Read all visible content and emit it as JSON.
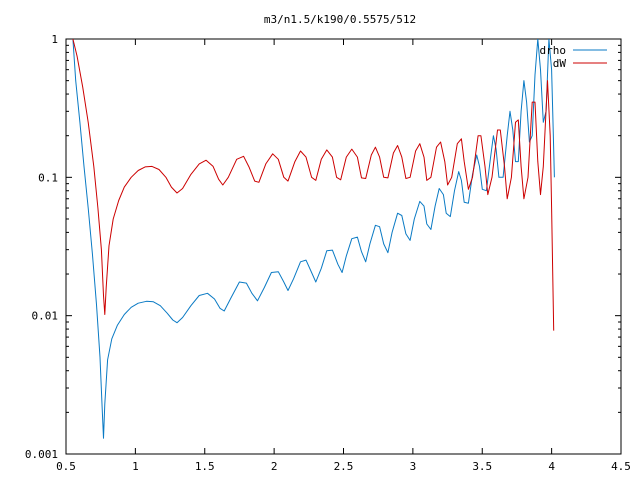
{
  "chart_data": {
    "type": "line",
    "title": "m3/n1.5/k190/0.5575/512",
    "xlabel": "",
    "ylabel": "",
    "xlim": [
      0.5,
      4.5
    ],
    "ylim": [
      0.001,
      1
    ],
    "yscale": "log",
    "grid": false,
    "legend_position": "top-right",
    "x_ticks": [
      0.5,
      1,
      1.5,
      2,
      2.5,
      3,
      3.5,
      4,
      4.5
    ],
    "x_tick_labels": [
      "0.5",
      "1",
      "1.5",
      "2",
      "2.5",
      "3",
      "3.5",
      "4",
      "4.5"
    ],
    "y_ticks": [
      0.001,
      0.01,
      0.1,
      1
    ],
    "y_tick_labels": [
      "0.001",
      "0.01",
      "0.1",
      "1"
    ],
    "series": [
      {
        "name": "drho",
        "color": "#0a7ac4",
        "points": [
          [
            0.55,
            1.0
          ],
          [
            0.57,
            0.5
          ],
          [
            0.6,
            0.25
          ],
          [
            0.63,
            0.12
          ],
          [
            0.66,
            0.06
          ],
          [
            0.69,
            0.028
          ],
          [
            0.72,
            0.012
          ],
          [
            0.745,
            0.005
          ],
          [
            0.76,
            0.0022
          ],
          [
            0.77,
            0.0013
          ],
          [
            0.78,
            0.0023
          ],
          [
            0.8,
            0.0048
          ],
          [
            0.83,
            0.0068
          ],
          [
            0.87,
            0.0085
          ],
          [
            0.92,
            0.0102
          ],
          [
            0.97,
            0.0115
          ],
          [
            1.02,
            0.0123
          ],
          [
            1.08,
            0.0127
          ],
          [
            1.13,
            0.0126
          ],
          [
            1.18,
            0.0118
          ],
          [
            1.23,
            0.0104
          ],
          [
            1.27,
            0.0093
          ],
          [
            1.3,
            0.0089
          ],
          [
            1.34,
            0.0097
          ],
          [
            1.4,
            0.0118
          ],
          [
            1.46,
            0.014
          ],
          [
            1.52,
            0.0145
          ],
          [
            1.57,
            0.0132
          ],
          [
            1.61,
            0.0113
          ],
          [
            1.64,
            0.0108
          ],
          [
            1.69,
            0.0135
          ],
          [
            1.75,
            0.0175
          ],
          [
            1.8,
            0.0172
          ],
          [
            1.84,
            0.0145
          ],
          [
            1.88,
            0.0128
          ],
          [
            1.93,
            0.016
          ],
          [
            1.98,
            0.0205
          ],
          [
            2.03,
            0.0208
          ],
          [
            2.07,
            0.0175
          ],
          [
            2.1,
            0.0152
          ],
          [
            2.14,
            0.0185
          ],
          [
            2.19,
            0.0245
          ],
          [
            2.23,
            0.0252
          ],
          [
            2.27,
            0.0205
          ],
          [
            2.3,
            0.0175
          ],
          [
            2.34,
            0.022
          ],
          [
            2.38,
            0.0295
          ],
          [
            2.42,
            0.0298
          ],
          [
            2.46,
            0.0235
          ],
          [
            2.49,
            0.0205
          ],
          [
            2.52,
            0.027
          ],
          [
            2.56,
            0.036
          ],
          [
            2.6,
            0.037
          ],
          [
            2.63,
            0.029
          ],
          [
            2.66,
            0.0245
          ],
          [
            2.69,
            0.033
          ],
          [
            2.73,
            0.045
          ],
          [
            2.76,
            0.044
          ],
          [
            2.79,
            0.033
          ],
          [
            2.82,
            0.0285
          ],
          [
            2.85,
            0.04
          ],
          [
            2.89,
            0.055
          ],
          [
            2.92,
            0.053
          ],
          [
            2.95,
            0.039
          ],
          [
            2.98,
            0.035
          ],
          [
            3.01,
            0.05
          ],
          [
            3.05,
            0.067
          ],
          [
            3.08,
            0.062
          ],
          [
            3.1,
            0.046
          ],
          [
            3.13,
            0.042
          ],
          [
            3.16,
            0.062
          ],
          [
            3.19,
            0.083
          ],
          [
            3.22,
            0.075
          ],
          [
            3.24,
            0.055
          ],
          [
            3.27,
            0.052
          ],
          [
            3.3,
            0.08
          ],
          [
            3.33,
            0.11
          ],
          [
            3.35,
            0.095
          ],
          [
            3.37,
            0.066
          ],
          [
            3.4,
            0.065
          ],
          [
            3.43,
            0.105
          ],
          [
            3.46,
            0.145
          ],
          [
            3.48,
            0.12
          ],
          [
            3.5,
            0.082
          ],
          [
            3.53,
            0.08
          ],
          [
            3.56,
            0.14
          ],
          [
            3.58,
            0.2
          ],
          [
            3.6,
            0.16
          ],
          [
            3.62,
            0.1
          ],
          [
            3.65,
            0.1
          ],
          [
            3.68,
            0.2
          ],
          [
            3.7,
            0.3
          ],
          [
            3.72,
            0.22
          ],
          [
            3.74,
            0.13
          ],
          [
            3.76,
            0.13
          ],
          [
            3.78,
            0.3
          ],
          [
            3.8,
            0.5
          ],
          [
            3.82,
            0.35
          ],
          [
            3.84,
            0.18
          ],
          [
            3.86,
            0.2
          ],
          [
            3.88,
            0.55
          ],
          [
            3.9,
            1.0
          ],
          [
            3.92,
            0.6
          ],
          [
            3.94,
            0.25
          ],
          [
            3.96,
            0.3
          ],
          [
            3.98,
            1.0
          ],
          [
            4.0,
            0.6
          ],
          [
            4.01,
            0.25
          ],
          [
            4.02,
            0.1
          ]
        ]
      },
      {
        "name": "dW",
        "color": "#cc0000",
        "points": [
          [
            0.55,
            1.0
          ],
          [
            0.58,
            0.75
          ],
          [
            0.62,
            0.45
          ],
          [
            0.66,
            0.25
          ],
          [
            0.7,
            0.12
          ],
          [
            0.73,
            0.06
          ],
          [
            0.755,
            0.03
          ],
          [
            0.77,
            0.014
          ],
          [
            0.78,
            0.0102
          ],
          [
            0.79,
            0.016
          ],
          [
            0.81,
            0.032
          ],
          [
            0.84,
            0.05
          ],
          [
            0.88,
            0.068
          ],
          [
            0.92,
            0.085
          ],
          [
            0.97,
            0.1
          ],
          [
            1.02,
            0.112
          ],
          [
            1.07,
            0.119
          ],
          [
            1.12,
            0.12
          ],
          [
            1.17,
            0.114
          ],
          [
            1.22,
            0.1
          ],
          [
            1.26,
            0.085
          ],
          [
            1.3,
            0.077
          ],
          [
            1.34,
            0.083
          ],
          [
            1.4,
            0.105
          ],
          [
            1.46,
            0.125
          ],
          [
            1.51,
            0.133
          ],
          [
            1.56,
            0.12
          ],
          [
            1.6,
            0.097
          ],
          [
            1.63,
            0.088
          ],
          [
            1.67,
            0.1
          ],
          [
            1.73,
            0.135
          ],
          [
            1.78,
            0.142
          ],
          [
            1.82,
            0.118
          ],
          [
            1.86,
            0.094
          ],
          [
            1.89,
            0.092
          ],
          [
            1.94,
            0.125
          ],
          [
            1.99,
            0.148
          ],
          [
            2.03,
            0.135
          ],
          [
            2.07,
            0.1
          ],
          [
            2.1,
            0.094
          ],
          [
            2.15,
            0.13
          ],
          [
            2.19,
            0.155
          ],
          [
            2.23,
            0.14
          ],
          [
            2.27,
            0.1
          ],
          [
            2.3,
            0.095
          ],
          [
            2.34,
            0.135
          ],
          [
            2.38,
            0.158
          ],
          [
            2.42,
            0.14
          ],
          [
            2.45,
            0.1
          ],
          [
            2.48,
            0.096
          ],
          [
            2.52,
            0.14
          ],
          [
            2.56,
            0.16
          ],
          [
            2.6,
            0.14
          ],
          [
            2.63,
            0.099
          ],
          [
            2.66,
            0.098
          ],
          [
            2.7,
            0.145
          ],
          [
            2.73,
            0.165
          ],
          [
            2.76,
            0.14
          ],
          [
            2.79,
            0.1
          ],
          [
            2.82,
            0.099
          ],
          [
            2.86,
            0.15
          ],
          [
            2.89,
            0.17
          ],
          [
            2.92,
            0.14
          ],
          [
            2.95,
            0.098
          ],
          [
            2.98,
            0.1
          ],
          [
            3.02,
            0.155
          ],
          [
            3.05,
            0.175
          ],
          [
            3.08,
            0.14
          ],
          [
            3.1,
            0.095
          ],
          [
            3.13,
            0.1
          ],
          [
            3.17,
            0.165
          ],
          [
            3.2,
            0.18
          ],
          [
            3.23,
            0.13
          ],
          [
            3.25,
            0.088
          ],
          [
            3.28,
            0.1
          ],
          [
            3.32,
            0.175
          ],
          [
            3.35,
            0.19
          ],
          [
            3.37,
            0.13
          ],
          [
            3.4,
            0.082
          ],
          [
            3.43,
            0.1
          ],
          [
            3.47,
            0.2
          ],
          [
            3.49,
            0.2
          ],
          [
            3.52,
            0.12
          ],
          [
            3.54,
            0.075
          ],
          [
            3.57,
            0.1
          ],
          [
            3.61,
            0.22
          ],
          [
            3.63,
            0.22
          ],
          [
            3.66,
            0.12
          ],
          [
            3.68,
            0.07
          ],
          [
            3.71,
            0.1
          ],
          [
            3.74,
            0.25
          ],
          [
            3.76,
            0.26
          ],
          [
            3.78,
            0.12
          ],
          [
            3.8,
            0.07
          ],
          [
            3.83,
            0.1
          ],
          [
            3.86,
            0.35
          ],
          [
            3.88,
            0.35
          ],
          [
            3.9,
            0.13
          ],
          [
            3.92,
            0.075
          ],
          [
            3.94,
            0.12
          ],
          [
            3.97,
            0.5
          ],
          [
            3.99,
            0.2
          ],
          [
            4.0,
            0.06
          ],
          [
            4.015,
            0.0078
          ]
        ]
      }
    ]
  }
}
